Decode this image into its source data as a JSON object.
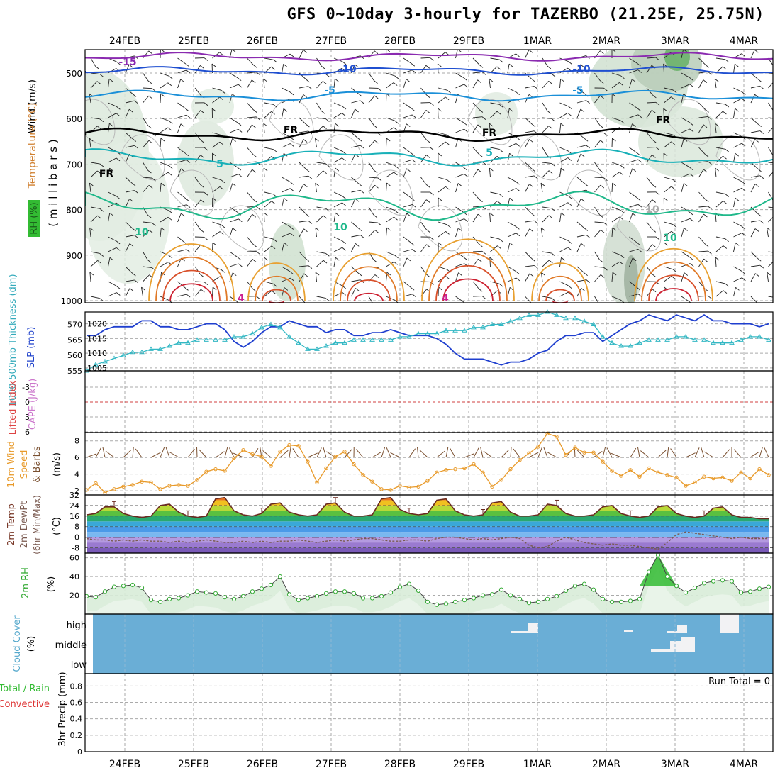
{
  "title": "GFS 0~10day 3-hourly for TAZERBO (21.25E, 25.75N)",
  "colors": {
    "frame": "#000000",
    "grid": "#aaaaaa",
    "slp": "#1f3fcf",
    "thickness": "#33b8c4",
    "wind_speed": "#e89a2a",
    "barb": "#7a5030",
    "rh2m": "#33aa33",
    "temp_line": "#6a2a20",
    "dewpoint": "#7a5a50",
    "cloud": "#6aaed6",
    "cloud_gap": "#f2f2f4",
    "zero_li": "#d04040"
  },
  "dates": [
    "24FEB",
    "25FEB",
    "26FEB",
    "27FEB",
    "28FEB",
    "29FEB",
    "1MAR",
    "2MAR",
    "3MAR",
    "4MAR"
  ],
  "panels": {
    "upper": {
      "ylabel_wind": "Wind (m/s)",
      "ylabel_temp": "Temperature (°C)",
      "ylabel_mb": "( m i l l i b a r s )",
      "ylabel_rh": "RH (%)",
      "levels": [
        500,
        600,
        700,
        800,
        900,
        1000
      ],
      "contour_labels": [
        "-15",
        "-10",
        "-10",
        "-5",
        "-5",
        "FR",
        "FR",
        "FR",
        "FR",
        "5",
        "5",
        "10",
        "10",
        "10",
        "10",
        "4",
        "4"
      ]
    },
    "slp": {
      "label_thick": "1000-500mb Thickness (dm)",
      "label_slp": "SLP (mb)",
      "thick_ticks": [
        "570",
        "565",
        "560",
        "555"
      ],
      "slp_ticks": [
        "1020",
        "1015",
        "1010",
        "1005"
      ]
    },
    "cape": {
      "label_li": "Lifted Index",
      "label_cape": "CAPE (J/kg)",
      "ticks": [
        "-3",
        "0",
        "3",
        "6"
      ]
    },
    "wind10": {
      "label1": "10m Wind",
      "label2": "Speed",
      "label3": "& Barbs",
      "units": "(m/s)",
      "ticks": [
        "8",
        "6",
        "4",
        "2"
      ]
    },
    "temp2m": {
      "label1": "2m Temp",
      "label2": "2m DewPt",
      "label3": "(6hr Min/Max)",
      "units": "(°C)",
      "ticks": [
        "32",
        "24",
        "16",
        "8",
        "0",
        "-8"
      ]
    },
    "rh2m": {
      "label": "2m RH",
      "units": "(%)",
      "ticks": [
        "60",
        "40",
        "20"
      ]
    },
    "cloud": {
      "label": "Cloud Cover",
      "units": "(%)",
      "levels": [
        "high",
        "middle",
        "low"
      ]
    },
    "precip": {
      "label_total": "Total / Rain",
      "label_conv": "Convective",
      "label_units": "3hr Precip (mm)",
      "run_total": "Run Total = 0",
      "ticks": [
        "0.8",
        "0.6",
        "0.4",
        "0.2",
        "0"
      ]
    }
  },
  "chart_data": [
    {
      "type": "line",
      "title": "SLP and 1000-500mb Thickness",
      "x": "3-hourly steps 23FEB 12Z to 4MAR 06Z",
      "ylabel": "SLP (mb) / Thickness (dm)",
      "series": [
        {
          "name": "SLP (mb)",
          "ylim": [
            1004,
            1024
          ],
          "values": [
            1016,
            1016,
            1018,
            1019,
            1019,
            1019,
            1021,
            1021,
            1019,
            1019,
            1018,
            1018,
            1019,
            1020,
            1020,
            1018,
            1014,
            1012,
            1014,
            1017,
            1019,
            1019,
            1021,
            1020,
            1019,
            1019,
            1017,
            1018,
            1018,
            1016,
            1016,
            1017,
            1017,
            1018,
            1017,
            1016,
            1016,
            1016,
            1015,
            1013,
            1010,
            1008,
            1008,
            1008,
            1007,
            1006,
            1007,
            1007,
            1008,
            1010,
            1011,
            1014,
            1016,
            1016,
            1017,
            1017,
            1014,
            1016,
            1018,
            1020,
            1021,
            1023,
            1022,
            1021,
            1023,
            1022,
            1021,
            1023,
            1021,
            1021,
            1020,
            1020,
            1020,
            1019,
            1020
          ]
        },
        {
          "name": "Thickness (dm)",
          "ylim": [
            555,
            574
          ],
          "values": [
            555,
            557,
            558,
            559,
            560,
            561,
            561,
            562,
            562,
            563,
            564,
            564,
            565,
            565,
            565,
            565,
            566,
            566,
            567,
            569,
            570,
            569,
            566,
            564,
            562,
            562,
            563,
            564,
            564,
            565,
            565,
            565,
            565,
            565,
            566,
            566,
            567,
            567,
            567,
            568,
            568,
            568,
            569,
            569,
            570,
            570,
            571,
            572,
            573,
            573,
            574,
            573,
            572,
            572,
            571,
            570,
            566,
            564,
            563,
            563,
            564,
            565,
            565,
            565,
            566,
            566,
            565,
            565,
            564,
            564,
            564,
            565,
            566,
            566,
            565
          ]
        }
      ]
    },
    {
      "type": "line",
      "title": "10m Wind Speed",
      "ylabel": "m/s",
      "ylim": [
        1.5,
        9
      ],
      "series": [
        {
          "name": "10m wind speed",
          "values": [
            2.1,
            2.9,
            1.8,
            2.2,
            2.5,
            2.7,
            3.1,
            3.0,
            2.2,
            2.6,
            2.7,
            2.6,
            3.3,
            4.3,
            4.6,
            4.4,
            5.9,
            6.9,
            6.4,
            6.1,
            5.0,
            6.7,
            7.5,
            7.4,
            5.5,
            3.0,
            4.7,
            6.1,
            6.7,
            5.2,
            3.9,
            3.1,
            2.2,
            2.1,
            2.6,
            2.4,
            2.5,
            3.2,
            4.2,
            4.5,
            4.6,
            4.7,
            5.2,
            4.2,
            2.5,
            3.3,
            4.6,
            5.7,
            6.5,
            7.3,
            8.9,
            8.5,
            6.3,
            7.2,
            6.6,
            6.6,
            5.5,
            4.4,
            3.8,
            4.5,
            3.7,
            4.7,
            4.2,
            3.9,
            3.6,
            2.6,
            3.0,
            3.7,
            3.5,
            3.6,
            3.2,
            4.2,
            3.5,
            4.6,
            3.9
          ]
        }
      ]
    },
    {
      "type": "area",
      "title": "2m Temp / 2m DewPt",
      "ylabel": "°C",
      "ylim": [
        -12,
        32
      ],
      "series": [
        {
          "name": "2m Temp",
          "values": [
            17,
            18,
            23,
            23,
            18,
            16,
            15,
            16,
            24,
            25,
            19,
            16,
            15,
            16,
            29,
            30,
            20,
            17,
            16,
            18,
            25,
            26,
            19,
            17,
            16,
            17,
            25,
            26,
            19,
            16,
            16,
            17,
            29,
            30,
            21,
            18,
            17,
            18,
            28,
            29,
            20,
            17,
            16,
            17,
            26,
            27,
            19,
            16,
            16,
            17,
            25,
            24,
            18,
            16,
            16,
            17,
            23,
            24,
            18,
            16,
            15,
            16,
            23,
            24,
            18,
            16,
            15,
            16,
            22,
            23,
            17,
            15,
            15,
            14,
            14
          ]
        },
        {
          "name": "2m DewPt",
          "values": [
            -1,
            -2,
            -2,
            -3,
            -2,
            -3,
            -2,
            -3,
            -3,
            -4,
            -3,
            -4,
            -3,
            -2,
            -3,
            -4,
            -4,
            -3,
            -4,
            -3,
            -4,
            -3,
            -3,
            -2,
            -3,
            -4,
            -3,
            -2,
            -3,
            -2,
            -1,
            -1,
            -2,
            -3,
            -3,
            -2,
            -2,
            -3,
            -1,
            0,
            0,
            -1,
            -2,
            -1,
            -2,
            -1,
            0,
            -1,
            -6,
            -8,
            -7,
            -3,
            0,
            -2,
            -4,
            -5,
            -6,
            -5,
            -6,
            -6,
            -7,
            -8,
            -9,
            -4,
            2,
            4,
            3,
            2,
            1,
            0,
            -1,
            0,
            -1,
            -1,
            -1
          ]
        }
      ]
    },
    {
      "type": "area",
      "title": "2m RH",
      "ylabel": "%",
      "ylim": [
        0,
        65
      ],
      "series": [
        {
          "name": "2m RH",
          "values": [
            19,
            18,
            24,
            29,
            30,
            31,
            28,
            15,
            13,
            16,
            17,
            20,
            24,
            23,
            22,
            18,
            16,
            19,
            24,
            27,
            31,
            40,
            21,
            15,
            17,
            19,
            22,
            24,
            24,
            22,
            17,
            17,
            19,
            23,
            29,
            32,
            25,
            13,
            10,
            11,
            13,
            15,
            17,
            20,
            21,
            26,
            20,
            16,
            12,
            13,
            16,
            19,
            25,
            30,
            32,
            26,
            16,
            13,
            13,
            14,
            16,
            45,
            63,
            40,
            30,
            23,
            28,
            33,
            35,
            36,
            35,
            23,
            24,
            27,
            29
          ]
        }
      ]
    }
  ]
}
